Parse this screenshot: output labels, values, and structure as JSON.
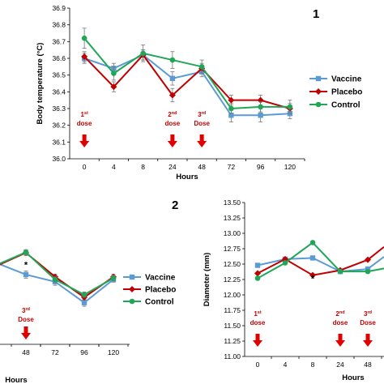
{
  "chart_data": [
    {
      "panel_label": "1",
      "type": "line",
      "categories": [
        "0",
        "4",
        "8",
        "24",
        "48",
        "72",
        "96",
        "120"
      ],
      "xlabel": "Hours",
      "ylabel": "Body temperature (°C)",
      "ylim": [
        36.0,
        36.9
      ],
      "yticks": [
        "36.0",
        "36.1",
        "36.2",
        "36.3",
        "36.4",
        "36.5",
        "36.6",
        "36.7",
        "36.8",
        "36.9"
      ],
      "legend_position": "right",
      "series": [
        {
          "name": "Vaccine",
          "color": "#5b9bd5",
          "marker": "square",
          "values": [
            36.6,
            36.54,
            36.62,
            36.48,
            36.52,
            36.26,
            36.26,
            36.27
          ],
          "errors": [
            0.03,
            0.03,
            0.03,
            0.04,
            0.03,
            0.04,
            0.04,
            0.03
          ]
        },
        {
          "name": "Placebo",
          "color": "#c00000",
          "marker": "diamond",
          "values": [
            36.61,
            36.43,
            36.62,
            36.38,
            36.54,
            36.35,
            36.35,
            36.3
          ],
          "errors": [
            0.03,
            0.03,
            0.03,
            0.04,
            0.03,
            0.03,
            0.03,
            0.03
          ]
        },
        {
          "name": "Control",
          "color": "#21a658",
          "marker": "circle",
          "values": [
            36.72,
            36.51,
            36.63,
            36.59,
            36.55,
            36.3,
            36.31,
            36.31
          ],
          "errors": [
            0.06,
            0.04,
            0.05,
            0.05,
            0.04,
            0.03,
            0.03,
            0.04
          ]
        }
      ],
      "doses": [
        {
          "number": "1",
          "suffix": "st",
          "word": "dose",
          "at": "0"
        },
        {
          "number": "2",
          "suffix": "nd",
          "word": "dose",
          "at": "24"
        },
        {
          "number": "3",
          "suffix": "rd",
          "word": "Dose",
          "at": "48"
        }
      ]
    },
    {
      "panel_label": "2",
      "type": "line",
      "categories": [
        "48",
        "72",
        "96",
        "120"
      ],
      "xlabel": "Hours",
      "legend_position": "right",
      "series": [
        {
          "name": "Vaccine",
          "color": "#5b9bd5",
          "marker": "square",
          "values": [
            0.355,
            0.275,
            0.04,
            0.3
          ],
          "errors": [
            0.04,
            0.04,
            0.04,
            0.03
          ]
        },
        {
          "name": "Placebo",
          "color": "#c00000",
          "marker": "diamond",
          "values": [
            0.6,
            0.33,
            0.1,
            0.33
          ],
          "errors": [
            0.03,
            0.03,
            0.03,
            0.03
          ]
        },
        {
          "name": "Control",
          "color": "#21a658",
          "marker": "circle",
          "values": [
            0.605,
            0.3,
            0.13,
            0.315
          ],
          "errors": [
            0.03,
            0.03,
            0.03,
            0.03
          ]
        }
      ],
      "annotation": "*",
      "doses": [
        {
          "number": "3",
          "suffix": "rd",
          "word": "Dose",
          "at": "48"
        }
      ]
    },
    {
      "type": "line",
      "categories": [
        "0",
        "4",
        "8",
        "24",
        "48"
      ],
      "xlabel": "Hours",
      "ylabel": "Diameter (mm)",
      "ylim": [
        11.0,
        13.5
      ],
      "yticks": [
        "11.00",
        "11.25",
        "11.50",
        "11.75",
        "12.00",
        "12.25",
        "12.50",
        "12.75",
        "13.00",
        "13.25",
        "13.50"
      ],
      "series": [
        {
          "name": "Vaccine",
          "color": "#5b9bd5",
          "marker": "square",
          "values": [
            12.48,
            12.58,
            12.6,
            12.38,
            12.42
          ]
        },
        {
          "name": "Placebo",
          "color": "#c00000",
          "marker": "diamond",
          "values": [
            12.35,
            12.58,
            12.32,
            12.4,
            12.57
          ]
        },
        {
          "name": "Control",
          "color": "#21a658",
          "marker": "circle",
          "values": [
            12.27,
            12.52,
            12.85,
            12.38,
            12.38
          ]
        }
      ],
      "annotation": "*",
      "doses": [
        {
          "number": "1",
          "suffix": "st",
          "word": "dose",
          "at": "0"
        },
        {
          "number": "2",
          "suffix": "nd",
          "word": "dose",
          "at": "24"
        },
        {
          "number": "3",
          "suffix": "rd",
          "word": "Dose",
          "at": "48"
        }
      ]
    }
  ]
}
